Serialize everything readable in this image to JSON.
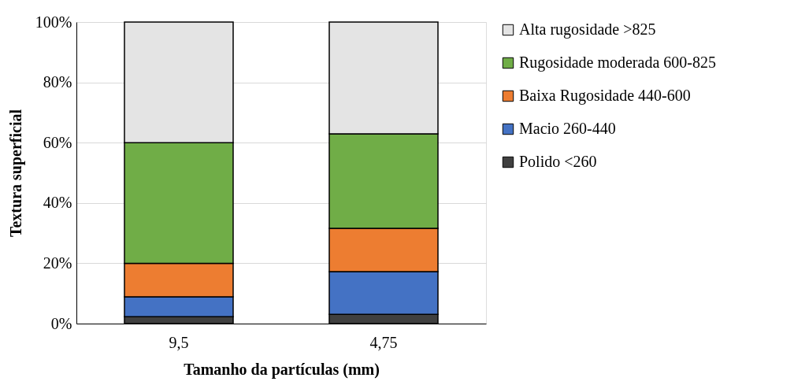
{
  "chart_data": {
    "type": "bar",
    "stacked": true,
    "xlabel": "Tamanho da partículas (mm)",
    "ylabel": "Textura superficial",
    "categories": [
      "9,5",
      "4,75"
    ],
    "series": [
      {
        "name": "Polido <260",
        "color": "#404040",
        "values": [
          2.3,
          3.1
        ]
      },
      {
        "name": "Macio 260-440",
        "color": "#4472c4",
        "values": [
          6.6,
          14.1
        ]
      },
      {
        "name": "Baixa Rugosidade 440-600",
        "color": "#ed7d31",
        "values": [
          11.1,
          14.4
        ]
      },
      {
        "name": "Rugosidade moderada 600-825",
        "color": "#70ad47",
        "values": [
          40.0,
          31.3
        ]
      },
      {
        "name": "Alta rugosidade >825",
        "color": "#e4e4e4",
        "values": [
          40.0,
          37.1
        ]
      }
    ],
    "ylim": [
      0,
      100
    ],
    "yticks": [
      {
        "value": 0,
        "label": "0%"
      },
      {
        "value": 20,
        "label": "20%"
      },
      {
        "value": 40,
        "label": "40%"
      },
      {
        "value": 60,
        "label": "60%"
      },
      {
        "value": 80,
        "label": "80%"
      },
      {
        "value": 100,
        "label": "100%"
      }
    ],
    "grid": "y",
    "legend": "right"
  }
}
